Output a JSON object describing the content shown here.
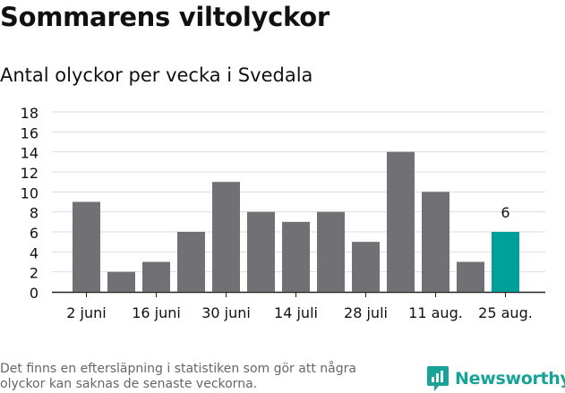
{
  "header": {
    "title": "Sommarens viltolyckor",
    "subtitle": "Antal olyckor per vecka i Svedala"
  },
  "footer": {
    "note_line1": "Det finns en eftersläpning i statistiken som gör att några",
    "note_line2": "olyckor kan saknas de senaste veckorna.",
    "brand": "Newsworthy",
    "brand_icon": "newsworthy-logo-icon"
  },
  "colors": {
    "bar": "#717074",
    "highlight": "#00a09a",
    "grid": "#dddddd",
    "text": "#111111",
    "brand": "#17a398"
  },
  "chart_data": {
    "type": "bar",
    "title": "Sommarens viltolyckor",
    "subtitle": "Antal olyckor per vecka i Svedala",
    "xlabel": "",
    "ylabel": "",
    "ylim": [
      0,
      18
    ],
    "y_ticks": [
      0,
      2,
      4,
      6,
      8,
      10,
      12,
      14,
      16,
      18
    ],
    "grid": true,
    "values": [
      9,
      2,
      3,
      6,
      11,
      8,
      7,
      8,
      5,
      14,
      10,
      3,
      6
    ],
    "x_tick_labels": [
      "2 juni",
      "16 juni",
      "30 juni",
      "14 juli",
      "28 juli",
      "11 aug.",
      "25 aug."
    ],
    "x_tick_every": 2,
    "highlight_index": 12,
    "annotations": [
      {
        "index": 12,
        "text": "6"
      }
    ]
  }
}
